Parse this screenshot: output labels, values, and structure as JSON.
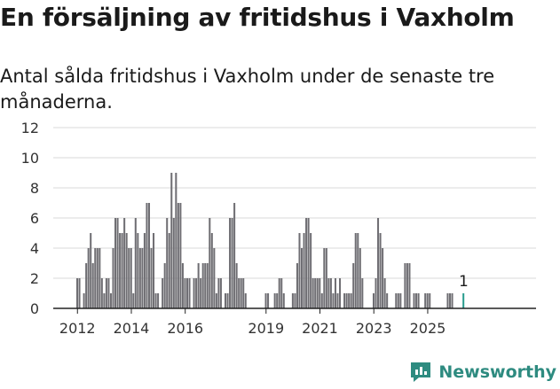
{
  "title": "En försäljning av fritidshus i Vaxholm",
  "subtitle": "Antal sålda fritidshus i Vaxholm under de senaste tre månaderna.",
  "brand": "Newsworthy",
  "colors": {
    "bar": "#6f6e73",
    "highlight": "#2a9d8f",
    "grid": "#d9d9d9",
    "axis": "#222222",
    "brand": "#2e8b80"
  },
  "chart_data": {
    "type": "bar",
    "ylim": [
      0,
      12
    ],
    "yticks": [
      "0",
      "2",
      "4",
      "6",
      "8",
      "10",
      "12"
    ],
    "xtick_labels": [
      {
        "label": "2012",
        "month": 0
      },
      {
        "label": "2014",
        "month": 24
      },
      {
        "label": "2016",
        "month": 48
      },
      {
        "label": "2019",
        "month": 84
      },
      {
        "label": "2021",
        "month": 108
      },
      {
        "label": "2023",
        "month": 132
      },
      {
        "label": "2025",
        "month": 156
      }
    ],
    "months_start": "2012-01",
    "values": [
      2,
      2,
      0,
      1,
      3,
      4,
      5,
      3,
      4,
      4,
      4,
      2,
      1,
      2,
      2,
      1,
      4,
      6,
      6,
      5,
      5,
      6,
      5,
      4,
      4,
      1,
      6,
      5,
      4,
      4,
      5,
      7,
      7,
      4,
      5,
      1,
      1,
      0,
      2,
      3,
      6,
      5,
      9,
      6,
      9,
      7,
      7,
      3,
      2,
      2,
      2,
      0,
      2,
      2,
      3,
      2,
      3,
      3,
      3,
      6,
      5,
      4,
      1,
      2,
      2,
      0,
      1,
      1,
      6,
      6,
      7,
      3,
      2,
      2,
      2,
      1,
      0,
      0,
      0,
      0,
      0,
      0,
      0,
      0,
      1,
      1,
      0,
      0,
      1,
      1,
      2,
      2,
      1,
      0,
      0,
      0,
      1,
      1,
      3,
      5,
      4,
      5,
      6,
      6,
      5,
      2,
      2,
      2,
      2,
      1,
      4,
      4,
      2,
      2,
      1,
      2,
      1,
      2,
      0,
      1,
      1,
      1,
      1,
      3,
      5,
      5,
      4,
      2,
      0,
      0,
      0,
      0,
      1,
      2,
      6,
      5,
      4,
      2,
      1,
      0,
      0,
      0,
      1,
      1,
      1,
      0,
      3,
      3,
      3,
      0,
      1,
      1,
      1,
      0,
      0,
      1,
      1,
      1,
      0,
      0,
      0,
      0,
      0,
      0,
      0,
      1,
      1,
      1,
      0,
      0,
      0,
      0,
      1
    ],
    "annotation": {
      "label": "1",
      "value": 1
    }
  }
}
